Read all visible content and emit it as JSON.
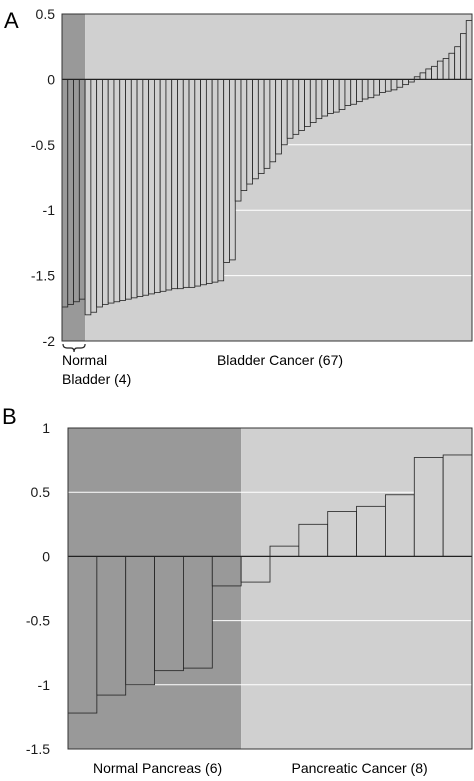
{
  "chart_data": [
    {
      "panel": "A",
      "type": "bar",
      "ylim": [
        -2,
        0.5
      ],
      "yticks": [
        0.5,
        0,
        -0.5,
        -1,
        -1.5,
        -2
      ],
      "ytick_labels": [
        "0.5",
        "0",
        "-0.5",
        "-1",
        "-1.5",
        "-2"
      ],
      "grid": true,
      "groups": [
        {
          "name": "Normal\nBladder (4)",
          "color": "#999999",
          "values": [
            -1.74,
            -1.72,
            -1.7,
            -1.68
          ]
        },
        {
          "name": "Bladder Cancer (67)",
          "color": "#d0d0d0",
          "values": [
            -1.8,
            -1.78,
            -1.74,
            -1.72,
            -1.71,
            -1.7,
            -1.69,
            -1.68,
            -1.67,
            -1.66,
            -1.65,
            -1.64,
            -1.63,
            -1.62,
            -1.61,
            -1.6,
            -1.6,
            -1.59,
            -1.59,
            -1.58,
            -1.57,
            -1.56,
            -1.55,
            -1.54,
            -1.4,
            -1.38,
            -0.93,
            -0.85,
            -0.8,
            -0.76,
            -0.72,
            -0.68,
            -0.63,
            -0.57,
            -0.5,
            -0.45,
            -0.42,
            -0.39,
            -0.36,
            -0.33,
            -0.3,
            -0.28,
            -0.26,
            -0.25,
            -0.23,
            -0.2,
            -0.19,
            -0.17,
            -0.15,
            -0.14,
            -0.12,
            -0.1,
            -0.09,
            -0.08,
            -0.06,
            -0.04,
            -0.02,
            0.02,
            0.05,
            0.08,
            0.1,
            0.14,
            0.16,
            0.2,
            0.25,
            0.35,
            0.45
          ]
        }
      ]
    },
    {
      "panel": "B",
      "type": "bar",
      "ylim": [
        -1.5,
        1
      ],
      "yticks": [
        1,
        0.5,
        0,
        -0.5,
        -1,
        -1.5
      ],
      "ytick_labels": [
        "1",
        "0.5",
        "0",
        "-0.5",
        "-1",
        "-1.5"
      ],
      "grid": true,
      "groups": [
        {
          "name": "Normal Pancreas (6)",
          "color": "#999999",
          "values": [
            -1.22,
            -1.08,
            -1.0,
            -0.89,
            -0.87,
            -0.23
          ]
        },
        {
          "name": "Pancreatic Cancer (8)",
          "color": "#d0d0d0",
          "values": [
            -0.2,
            0.08,
            0.25,
            0.35,
            0.39,
            0.48,
            0.77,
            0.79
          ]
        }
      ]
    }
  ]
}
